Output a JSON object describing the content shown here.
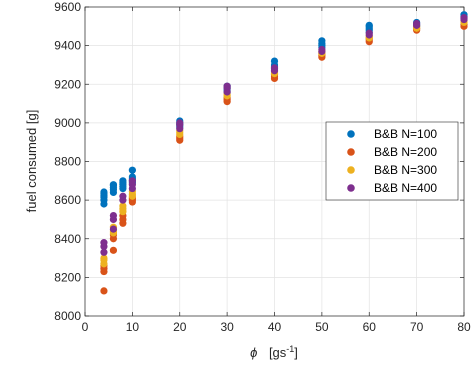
{
  "chart_data": {
    "type": "scatter",
    "xlabel": {
      "symbol": "ϕ",
      "unit_prefix": "[gs",
      "unit_exponent": "-1",
      "unit_suffix": "]"
    },
    "ylabel": "fuel consumed [g]",
    "xlim": [
      0,
      80
    ],
    "ylim": [
      8000,
      9600
    ],
    "xticks": [
      0,
      10,
      20,
      30,
      40,
      50,
      60,
      70,
      80
    ],
    "yticks": [
      8000,
      8200,
      8400,
      8600,
      8800,
      9000,
      9200,
      9400,
      9600
    ],
    "grid": true,
    "legend_position": "right",
    "series": [
      {
        "name": "B&B N=100",
        "color": "#0072BD",
        "points": [
          [
            4,
            8580
          ],
          [
            4,
            8600
          ],
          [
            4,
            8615
          ],
          [
            4,
            8625
          ],
          [
            4,
            8635
          ],
          [
            4,
            8642
          ],
          [
            6,
            8640
          ],
          [
            6,
            8655
          ],
          [
            6,
            8665
          ],
          [
            6,
            8675
          ],
          [
            6,
            8680
          ],
          [
            8,
            8660
          ],
          [
            8,
            8670
          ],
          [
            8,
            8680
          ],
          [
            8,
            8690
          ],
          [
            8,
            8700
          ],
          [
            10,
            8690
          ],
          [
            10,
            8700
          ],
          [
            10,
            8710
          ],
          [
            10,
            8720
          ],
          [
            10,
            8755
          ],
          [
            20,
            8980
          ],
          [
            20,
            8990
          ],
          [
            20,
            9000
          ],
          [
            20,
            9010
          ],
          [
            30,
            9160
          ],
          [
            30,
            9170
          ],
          [
            30,
            9180
          ],
          [
            30,
            9190
          ],
          [
            40,
            9280
          ],
          [
            40,
            9290
          ],
          [
            40,
            9300
          ],
          [
            40,
            9320
          ],
          [
            50,
            9390
          ],
          [
            50,
            9400
          ],
          [
            50,
            9410
          ],
          [
            50,
            9425
          ],
          [
            60,
            9470
          ],
          [
            60,
            9480
          ],
          [
            60,
            9490
          ],
          [
            60,
            9500
          ],
          [
            60,
            9505
          ],
          [
            70,
            9500
          ],
          [
            70,
            9510
          ],
          [
            70,
            9520
          ],
          [
            80,
            9530
          ],
          [
            80,
            9540
          ],
          [
            80,
            9550
          ],
          [
            80,
            9560
          ]
        ]
      },
      {
        "name": "B&B N=200",
        "color": "#D95319",
        "points": [
          [
            4,
            8130
          ],
          [
            4,
            8230
          ],
          [
            4,
            8245
          ],
          [
            4,
            8260
          ],
          [
            6,
            8340
          ],
          [
            6,
            8400
          ],
          [
            6,
            8420
          ],
          [
            8,
            8480
          ],
          [
            8,
            8500
          ],
          [
            8,
            8520
          ],
          [
            10,
            8590
          ],
          [
            10,
            8600
          ],
          [
            10,
            8610
          ],
          [
            20,
            8910
          ],
          [
            20,
            8920
          ],
          [
            20,
            8930
          ],
          [
            30,
            9110
          ],
          [
            30,
            9120
          ],
          [
            30,
            9130
          ],
          [
            40,
            9230
          ],
          [
            40,
            9240
          ],
          [
            40,
            9250
          ],
          [
            50,
            9340
          ],
          [
            50,
            9350
          ],
          [
            50,
            9360
          ],
          [
            60,
            9420
          ],
          [
            60,
            9430
          ],
          [
            60,
            9440
          ],
          [
            70,
            9480
          ],
          [
            70,
            9490
          ],
          [
            80,
            9500
          ],
          [
            80,
            9510
          ]
        ]
      },
      {
        "name": "B&B N=300",
        "color": "#EDB120",
        "points": [
          [
            4,
            8270
          ],
          [
            4,
            8290
          ],
          [
            4,
            8300
          ],
          [
            6,
            8430
          ],
          [
            6,
            8440
          ],
          [
            6,
            8460
          ],
          [
            8,
            8540
          ],
          [
            8,
            8555
          ],
          [
            8,
            8570
          ],
          [
            10,
            8620
          ],
          [
            10,
            8630
          ],
          [
            10,
            8645
          ],
          [
            20,
            8940
          ],
          [
            20,
            8950
          ],
          [
            20,
            8960
          ],
          [
            30,
            9140
          ],
          [
            30,
            9150
          ],
          [
            40,
            9255
          ],
          [
            40,
            9265
          ],
          [
            50,
            9360
          ],
          [
            50,
            9370
          ],
          [
            60,
            9440
          ],
          [
            60,
            9450
          ],
          [
            70,
            9490
          ],
          [
            70,
            9500
          ],
          [
            80,
            9520
          ],
          [
            80,
            9530
          ]
        ]
      },
      {
        "name": "B&B N=400",
        "color": "#7E2F8E",
        "points": [
          [
            4,
            8330
          ],
          [
            4,
            8360
          ],
          [
            4,
            8380
          ],
          [
            6,
            8450
          ],
          [
            6,
            8500
          ],
          [
            6,
            8520
          ],
          [
            8,
            8600
          ],
          [
            8,
            8620
          ],
          [
            10,
            8660
          ],
          [
            10,
            8680
          ],
          [
            10,
            8700
          ],
          [
            20,
            8970
          ],
          [
            20,
            8990
          ],
          [
            20,
            9000
          ],
          [
            30,
            9160
          ],
          [
            30,
            9180
          ],
          [
            30,
            9190
          ],
          [
            40,
            9270
          ],
          [
            40,
            9285
          ],
          [
            50,
            9370
          ],
          [
            50,
            9380
          ],
          [
            60,
            9455
          ],
          [
            60,
            9465
          ],
          [
            70,
            9505
          ],
          [
            70,
            9515
          ],
          [
            80,
            9535
          ],
          [
            80,
            9545
          ]
        ]
      }
    ]
  }
}
